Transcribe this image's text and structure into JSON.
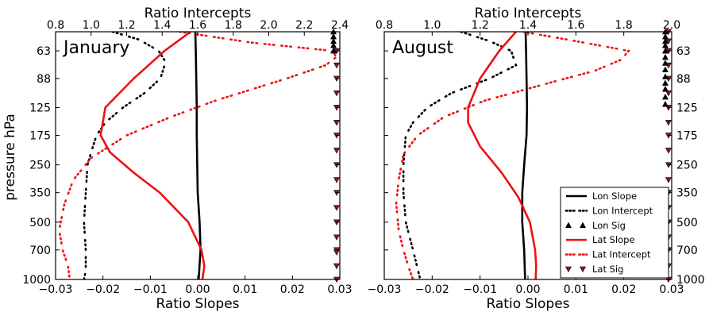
{
  "figure": {
    "ylabel": "pressure hPa",
    "top_xlabel": "Ratio Intercepts",
    "bottom_xlabel": "Ratio Slopes"
  },
  "colors": {
    "lon": "#000000",
    "lat": "#ee1111",
    "lat_marker": "#8b1a1a"
  },
  "chart_data": [
    {
      "type": "line",
      "title": "January",
      "ylabel": "pressure hPa",
      "xlabel_bottom": "Ratio Slopes",
      "xlabel_top": "Ratio Intercepts",
      "y_axis": {
        "scale": "log-inverted",
        "ticks": [
          63,
          88,
          125,
          175,
          250,
          350,
          500,
          700,
          1000
        ],
        "lim": [
          50,
          1000
        ]
      },
      "x_bottom": {
        "lim": [
          -0.03,
          0.03
        ],
        "ticks": [
          -0.03,
          -0.02,
          -0.01,
          0.0,
          0.01,
          0.02,
          0.03
        ],
        "tick_labels": [
          "−0.03",
          "−0.02",
          "−0.01",
          "0.00",
          "0.01",
          "0.02",
          "0.03"
        ]
      },
      "x_top": {
        "lim": [
          0.8,
          2.4
        ],
        "ticks": [
          0.8,
          1.0,
          1.2,
          1.4,
          1.6,
          1.8,
          2.0,
          2.2,
          2.4
        ],
        "tick_labels": [
          "0.8",
          "1.0",
          "1.2",
          "1.4",
          "1.6",
          "1.8",
          "2.0",
          "2.2",
          "2.4"
        ]
      },
      "series": [
        {
          "name": "Lon Slope",
          "axis": "bottom",
          "style": "solid",
          "color": "#000000",
          "points": [
            [
              -0.0005,
              50
            ],
            [
              -0.0004,
              63
            ],
            [
              -0.0003,
              88
            ],
            [
              -0.0002,
              125
            ],
            [
              -0.0002,
              175
            ],
            [
              -0.0001,
              250
            ],
            [
              0.0,
              350
            ],
            [
              0.0004,
              500
            ],
            [
              0.0006,
              700
            ],
            [
              0.0002,
              1000
            ]
          ]
        },
        {
          "name": "Lon Intercept",
          "axis": "top",
          "style": "dashdot",
          "color": "#000000",
          "points": [
            [
              1.12,
              50
            ],
            [
              1.27,
              55
            ],
            [
              1.38,
              63
            ],
            [
              1.42,
              72
            ],
            [
              1.39,
              88
            ],
            [
              1.3,
              105
            ],
            [
              1.18,
              125
            ],
            [
              1.08,
              150
            ],
            [
              1.03,
              175
            ],
            [
              1.0,
              215
            ],
            [
              0.98,
              250
            ],
            [
              0.97,
              350
            ],
            [
              0.96,
              500
            ],
            [
              0.97,
              700
            ],
            [
              0.97,
              900
            ],
            [
              0.96,
              1000
            ]
          ]
        },
        {
          "name": "Lat Slope",
          "axis": "bottom",
          "style": "solid",
          "color": "#ee1111",
          "points": [
            [
              -0.0015,
              50
            ],
            [
              -0.007,
              63
            ],
            [
              -0.0135,
              88
            ],
            [
              -0.0195,
              125
            ],
            [
              -0.0205,
              175
            ],
            [
              -0.0185,
              215
            ],
            [
              -0.0135,
              275
            ],
            [
              -0.008,
              350
            ],
            [
              -0.002,
              500
            ],
            [
              0.0008,
              700
            ],
            [
              0.0014,
              850
            ],
            [
              0.001,
              1000
            ]
          ]
        },
        {
          "name": "Lat Intercept",
          "axis": "top",
          "style": "dashdot",
          "color": "#ee1111",
          "points": [
            [
              1.5,
              50
            ],
            [
              1.9,
              57
            ],
            [
              2.36,
              63
            ],
            [
              2.38,
              68
            ],
            [
              2.32,
              75
            ],
            [
              2.1,
              88
            ],
            [
              1.7,
              115
            ],
            [
              1.45,
              140
            ],
            [
              1.2,
              175
            ],
            [
              1.0,
              230
            ],
            [
              0.9,
              300
            ],
            [
              0.85,
              400
            ],
            [
              0.82,
              550
            ],
            [
              0.84,
              700
            ],
            [
              0.87,
              850
            ],
            [
              0.88,
              1000
            ]
          ]
        }
      ],
      "sig_markers": {
        "lon": {
          "x": 0.029,
          "levels": [
            50,
            53,
            56,
            59,
            63
          ]
        },
        "lat": {
          "x": 0.029,
          "levels": [
            63,
            75,
            88,
            105,
            125,
            150,
            175,
            210,
            250,
            300,
            350,
            420,
            500,
            600,
            700,
            720,
            850,
            1000
          ]
        }
      },
      "legend": null
    },
    {
      "type": "line",
      "title": "August",
      "ylabel": "",
      "xlabel_bottom": "Ratio Slopes",
      "xlabel_top": "Ratio Intercepts",
      "y_axis": {
        "scale": "log-inverted",
        "ticks": [
          63,
          88,
          125,
          175,
          250,
          350,
          500,
          700,
          1000
        ],
        "lim": [
          50,
          1000
        ],
        "side": "right"
      },
      "x_bottom": {
        "lim": [
          -0.03,
          0.03
        ],
        "ticks": [
          -0.03,
          -0.02,
          -0.01,
          0.0,
          0.01,
          0.02,
          0.03
        ],
        "tick_labels": [
          "−0.03",
          "−0.02",
          "−0.01",
          "0.00",
          "0.01",
          "0.02",
          "0.03"
        ]
      },
      "x_top": {
        "lim": [
          0.8,
          2.0
        ],
        "ticks": [
          0.8,
          1.0,
          1.2,
          1.4,
          1.6,
          1.8,
          2.0
        ],
        "tick_labels": [
          "0.8",
          "1.0",
          "1.2",
          "1.4",
          "1.6",
          "1.8",
          "2.0"
        ]
      },
      "series": [
        {
          "name": "Lon Slope",
          "axis": "bottom",
          "style": "solid",
          "color": "#000000",
          "points": [
            [
              -0.0005,
              50
            ],
            [
              -0.0004,
              63
            ],
            [
              -0.0003,
              88
            ],
            [
              -0.0002,
              125
            ],
            [
              -0.0003,
              175
            ],
            [
              -0.0008,
              250
            ],
            [
              -0.0012,
              350
            ],
            [
              -0.0012,
              500
            ],
            [
              -0.0008,
              700
            ],
            [
              -0.0006,
              1000
            ]
          ]
        },
        {
          "name": "Lon Intercept",
          "axis": "top",
          "style": "dashdot",
          "color": "#000000",
          "points": [
            [
              1.12,
              50
            ],
            [
              1.24,
              56
            ],
            [
              1.33,
              63
            ],
            [
              1.35,
              75
            ],
            [
              1.24,
              88
            ],
            [
              1.08,
              105
            ],
            [
              0.98,
              125
            ],
            [
              0.92,
              150
            ],
            [
              0.89,
              175
            ],
            [
              0.88,
              250
            ],
            [
              0.88,
              350
            ],
            [
              0.89,
              500
            ],
            [
              0.92,
              700
            ],
            [
              0.95,
              1000
            ]
          ]
        },
        {
          "name": "Lat Slope",
          "axis": "bottom",
          "style": "solid",
          "color": "#ee1111",
          "points": [
            [
              -0.0025,
              50
            ],
            [
              -0.006,
              63
            ],
            [
              -0.01,
              88
            ],
            [
              -0.0125,
              125
            ],
            [
              -0.0125,
              150
            ],
            [
              -0.01,
              200
            ],
            [
              -0.0055,
              275
            ],
            [
              -0.002,
              370
            ],
            [
              0.0004,
              500
            ],
            [
              0.0015,
              700
            ],
            [
              0.0017,
              850
            ],
            [
              0.0016,
              1000
            ]
          ]
        },
        {
          "name": "Lat Intercept",
          "axis": "top",
          "style": "dashdot",
          "color": "#ee1111",
          "points": [
            [
              1.38,
              50
            ],
            [
              1.6,
              56
            ],
            [
              1.82,
              63
            ],
            [
              1.79,
              70
            ],
            [
              1.68,
              80
            ],
            [
              1.5,
              92
            ],
            [
              1.22,
              115
            ],
            [
              1.05,
              140
            ],
            [
              0.94,
              175
            ],
            [
              0.88,
              220
            ],
            [
              0.86,
              300
            ],
            [
              0.85,
              400
            ],
            [
              0.86,
              550
            ],
            [
              0.88,
              700
            ],
            [
              0.9,
              850
            ],
            [
              0.92,
              1000
            ]
          ]
        }
      ],
      "sig_markers": {
        "lon": {
          "x": 0.029,
          "levels": [
            50,
            53,
            56,
            59,
            63,
            68,
            73,
            79,
            86,
            93,
            100,
            110,
            120
          ]
        },
        "lat": {
          "x": 0.029,
          "levels": [
            50,
            56,
            63,
            75,
            88,
            105,
            125,
            150,
            175,
            210,
            250,
            300,
            350,
            420,
            500,
            600,
            700,
            850,
            1000
          ]
        }
      },
      "legend": {
        "placement": "bottom-right",
        "entries": [
          {
            "label": "Lon Slope",
            "kind": "line",
            "style": "solid",
            "color": "#000000"
          },
          {
            "label": "Lon Intercept",
            "kind": "line",
            "style": "dashdot",
            "color": "#000000"
          },
          {
            "label": "Lon Sig",
            "kind": "marker",
            "marker": "up",
            "color": "#000000"
          },
          {
            "label": "Lat Slope",
            "kind": "line",
            "style": "solid",
            "color": "#ee1111"
          },
          {
            "label": "Lat Intercept",
            "kind": "line",
            "style": "dashdot",
            "color": "#ee1111"
          },
          {
            "label": "Lat Sig",
            "kind": "marker",
            "marker": "down",
            "color": "#8b1a1a"
          }
        ]
      }
    }
  ]
}
